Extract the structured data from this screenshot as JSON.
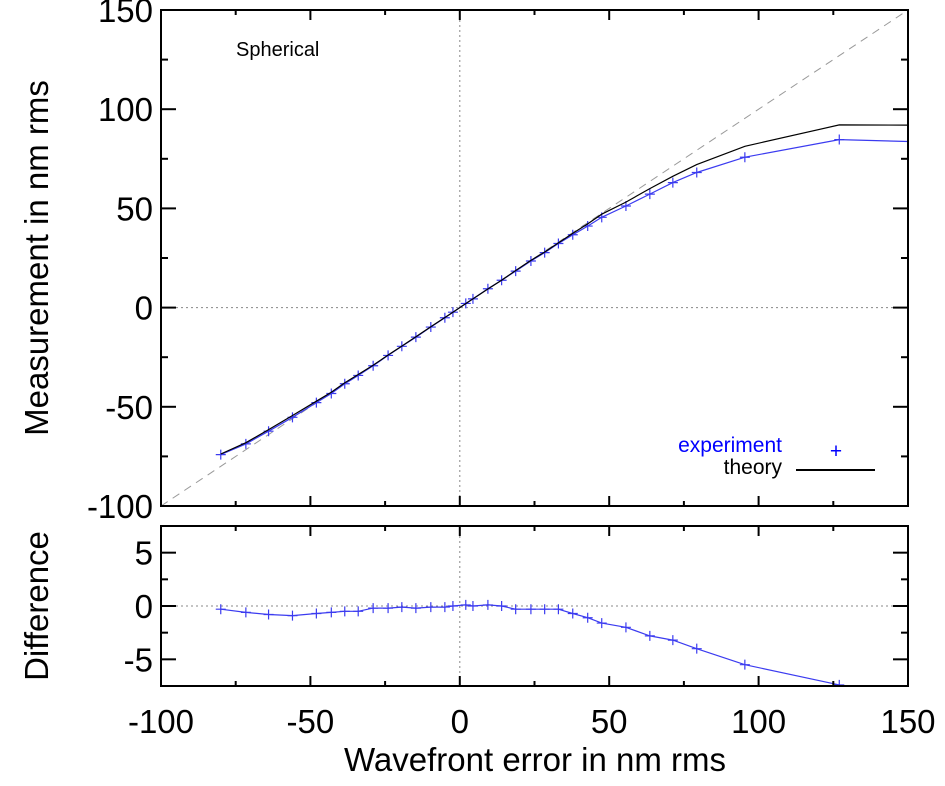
{
  "colors": {
    "experiment": "#3b3bf0",
    "theory": "#000000",
    "identity": "#999999",
    "zero_lines": "#888888",
    "legend_experiment_text": "#0000ff"
  },
  "chart_data": [
    {
      "type": "line",
      "panel": "top",
      "title": "",
      "annotation": "Spherical",
      "xlabel": "",
      "ylabel": "Measurement in nm rms",
      "xlim": [
        -100,
        150
      ],
      "ylim": [
        -100,
        150
      ],
      "xticks": [
        -100,
        -50,
        0,
        50,
        100,
        150
      ],
      "yticks": [
        -100,
        -50,
        0,
        50,
        100,
        150
      ],
      "ytick_labels": [
        "-100",
        "-50",
        "0",
        "50",
        "100",
        "150"
      ],
      "grid": false,
      "reference_lines": [
        "y=x dashed",
        "x=0 dotted",
        "y=0 dotted"
      ],
      "legend": {
        "position": "lower right",
        "entries": [
          "experiment",
          "theory"
        ],
        "experiment_symbol": "+"
      },
      "x": [
        -80,
        -71.6,
        -64,
        -56,
        -48,
        -43,
        -38.5,
        -34,
        -29,
        -24,
        -19.4,
        -14.7,
        -9.7,
        -5,
        -2.3,
        2,
        4.4,
        9.4,
        14,
        18.7,
        23.8,
        28.4,
        33,
        37.8,
        42.8,
        47.5,
        55.6,
        63.6,
        71.3,
        79.3,
        95.4,
        127,
        150
      ],
      "series": [
        {
          "name": "experiment",
          "marker": "+",
          "values": [
            -74.1,
            -68.7,
            -62.3,
            -55.3,
            -47.9,
            -43.3,
            -38.4,
            -34.2,
            -29.3,
            -24.1,
            -19.5,
            -14.9,
            -9.8,
            -5.1,
            -2.3,
            2.1,
            4.4,
            9.5,
            13.8,
            18.4,
            23.5,
            27.7,
            32.3,
            36.7,
            41.1,
            45.5,
            51.2,
            57.2,
            63.0,
            68.1,
            75.8,
            84.7,
            83.7
          ]
        },
        {
          "name": "theory",
          "marker": "",
          "values": [
            -73.8,
            -68.1,
            -61.5,
            -54.4,
            -47.2,
            -42.7,
            -37.9,
            -33.7,
            -29.1,
            -23.9,
            -19.4,
            -14.7,
            -9.7,
            -5.0,
            -2.3,
            2.0,
            4.4,
            9.4,
            13.8,
            18.7,
            23.8,
            28.0,
            32.6,
            37.4,
            42.2,
            47.1,
            53.2,
            60.0,
            66.2,
            72.1,
            81.3,
            92.1,
            92.0
          ]
        }
      ]
    },
    {
      "type": "line",
      "panel": "bottom",
      "title": "",
      "xlabel": "Wavefront error in nm rms",
      "ylabel": "Difference",
      "xlim": [
        -100,
        150
      ],
      "ylim": [
        -7.5,
        7.5
      ],
      "xticks": [
        -100,
        -50,
        0,
        50,
        100,
        150
      ],
      "xtick_labels": [
        "-100",
        "-50",
        "0",
        "50",
        "100",
        "150"
      ],
      "yticks": [
        -5,
        0,
        5
      ],
      "ytick_labels": [
        "-5",
        "0",
        "5"
      ],
      "grid": false,
      "reference_lines": [
        "x=0 dotted",
        "y=0 dotted"
      ],
      "x": [
        -80,
        -71.6,
        -64,
        -56,
        -48,
        -43,
        -38.5,
        -34,
        -29,
        -24,
        -19.4,
        -14.7,
        -9.7,
        -5,
        -2.3,
        2,
        4.4,
        9.4,
        14,
        18.7,
        23.8,
        28.4,
        33,
        37.8,
        42.8,
        47.5,
        55.6,
        63.6,
        71.3,
        79.3,
        95.4,
        127
      ],
      "series": [
        {
          "name": "difference",
          "marker": "+",
          "values": [
            -0.3,
            -0.6,
            -0.8,
            -0.9,
            -0.7,
            -0.6,
            -0.5,
            -0.5,
            -0.2,
            -0.2,
            -0.1,
            -0.2,
            -0.1,
            -0.1,
            0.0,
            0.1,
            0.0,
            0.1,
            0.0,
            -0.3,
            -0.3,
            -0.3,
            -0.3,
            -0.7,
            -1.1,
            -1.6,
            -2.0,
            -2.8,
            -3.2,
            -4.0,
            -5.5,
            -7.4
          ]
        }
      ]
    }
  ],
  "labels": {
    "annotation": "Spherical",
    "top_ylabel": "Measurement in nm rms",
    "bottom_ylabel": "Difference",
    "xlabel": "Wavefront error in nm rms",
    "legend_experiment": "experiment",
    "legend_experiment_symbol": "+",
    "legend_theory": "theory"
  }
}
